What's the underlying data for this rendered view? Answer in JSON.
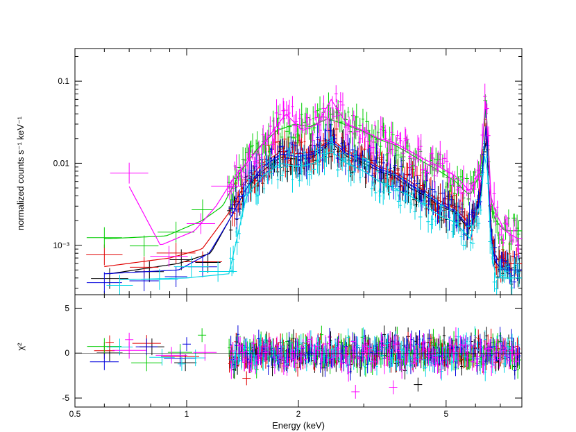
{
  "chart_data": [
    {
      "type": "scatter",
      "panel": "spectrum",
      "ylabel": "normalized counts s⁻¹ keV⁻¹",
      "yscale": "log",
      "xscale": "log",
      "xlim": [
        0.5,
        8.0
      ],
      "ylim": [
        0.00025,
        0.25
      ],
      "yticks": [
        {
          "v": 0.1,
          "label": "0.1"
        },
        {
          "v": 0.01,
          "label": "0.01"
        },
        {
          "v": 0.001,
          "label": "10⁻³"
        }
      ],
      "series": [
        {
          "color": "#000000",
          "x": [
            0.62,
            0.95,
            1.16,
            1.3,
            1.45,
            1.6,
            1.8,
            2.0,
            2.2,
            2.45,
            2.7,
            3.0,
            3.3,
            3.6,
            4.0,
            4.4,
            4.8,
            5.3,
            5.8,
            6.2,
            6.4,
            6.6,
            6.8,
            7.2,
            7.8
          ],
          "y": [
            0.00045,
            0.0006,
            0.0008,
            0.002,
            0.005,
            0.008,
            0.012,
            0.011,
            0.012,
            0.018,
            0.012,
            0.01,
            0.008,
            0.007,
            0.005,
            0.004,
            0.003,
            0.0025,
            0.0015,
            0.004,
            0.03,
            0.0012,
            0.0006,
            0.0005,
            0.0005
          ]
        },
        {
          "color": "#e00000",
          "x": [
            0.6,
            0.9,
            1.1,
            1.3,
            1.45,
            1.6,
            1.8,
            2.0,
            2.2,
            2.45,
            2.7,
            3.0,
            3.3,
            3.6,
            4.0,
            4.4,
            4.8,
            5.3,
            5.8,
            6.2,
            6.4,
            6.6,
            6.8,
            7.2,
            7.8
          ],
          "y": [
            0.00055,
            0.0007,
            0.0009,
            0.0025,
            0.006,
            0.01,
            0.014,
            0.013,
            0.014,
            0.02,
            0.014,
            0.012,
            0.009,
            0.008,
            0.006,
            0.0045,
            0.0035,
            0.0028,
            0.0018,
            0.0045,
            0.035,
            0.0015,
            0.0007,
            0.0006,
            0.0006
          ]
        },
        {
          "color": "#00cc00",
          "x": [
            0.6,
            0.88,
            1.1,
            1.25,
            1.4,
            1.55,
            1.75,
            1.95,
            2.15,
            2.4,
            2.65,
            2.95,
            3.25,
            3.6,
            4.0,
            4.4,
            4.8,
            5.3,
            5.8,
            6.2,
            6.4,
            6.6,
            6.8,
            7.2,
            7.8
          ],
          "y": [
            0.0012,
            0.0013,
            0.002,
            0.003,
            0.008,
            0.015,
            0.025,
            0.03,
            0.028,
            0.035,
            0.03,
            0.025,
            0.02,
            0.017,
            0.013,
            0.01,
            0.008,
            0.006,
            0.004,
            0.008,
            0.06,
            0.003,
            0.002,
            0.0015,
            0.0015
          ]
        },
        {
          "color": "#0000dd",
          "x": [
            0.6,
            0.95,
            1.15,
            1.3,
            1.45,
            1.6,
            1.8,
            2.0,
            2.2,
            2.45,
            2.7,
            3.0,
            3.3,
            3.6,
            4.0,
            4.4,
            4.8,
            5.3,
            5.8,
            6.2,
            6.4,
            6.6,
            6.8,
            7.2,
            7.8
          ],
          "y": [
            0.00045,
            0.0005,
            0.0008,
            0.002,
            0.005,
            0.009,
            0.013,
            0.012,
            0.013,
            0.019,
            0.013,
            0.011,
            0.0085,
            0.0075,
            0.0055,
            0.0042,
            0.0032,
            0.0026,
            0.0016,
            0.0042,
            0.032,
            0.0013,
            0.0006,
            0.0005,
            0.0005
          ]
        },
        {
          "color": "#00d5e5",
          "x": [
            0.66,
            1.0,
            1.3,
            1.45,
            1.6,
            1.8,
            2.0,
            2.2,
            2.45,
            2.7,
            3.0,
            3.3,
            3.6,
            4.0,
            4.4,
            4.8,
            5.3,
            5.8,
            6.2,
            6.4,
            6.6,
            6.8,
            7.2,
            7.8
          ],
          "y": [
            0.00038,
            0.0004,
            0.00045,
            0.004,
            0.007,
            0.01,
            0.009,
            0.01,
            0.014,
            0.01,
            0.008,
            0.006,
            0.005,
            0.004,
            0.003,
            0.0023,
            0.0019,
            0.0012,
            0.0032,
            0.02,
            0.001,
            0.0004,
            0.0004,
            0.0004
          ]
        },
        {
          "color": "#ff00ff",
          "x": [
            0.7,
            0.85,
            1.05,
            1.2,
            1.35,
            1.5,
            1.65,
            1.85,
            2.05,
            2.25,
            2.45,
            2.7,
            3.0,
            3.3,
            3.6,
            4.0,
            4.4,
            4.8,
            5.3,
            5.8,
            6.2,
            6.4,
            6.6,
            6.8,
            7.2,
            7.8
          ],
          "y": [
            0.0052,
            0.001,
            0.0015,
            0.003,
            0.007,
            0.012,
            0.02,
            0.04,
            0.025,
            0.03,
            0.06,
            0.03,
            0.025,
            0.02,
            0.018,
            0.014,
            0.011,
            0.009,
            0.007,
            0.0045,
            0.009,
            0.07,
            0.004,
            0.0025,
            0.0015,
            0.0012
          ]
        }
      ]
    },
    {
      "type": "scatter",
      "panel": "residuals",
      "xlabel": "Energy (keV)",
      "ylabel": "χ²",
      "xscale": "log",
      "xlim": [
        0.5,
        8.0
      ],
      "ylim": [
        -6.0,
        6.5
      ],
      "xticks": [
        {
          "v": 0.5,
          "label": "0.5"
        },
        {
          "v": 1,
          "label": "1"
        },
        {
          "v": 2,
          "label": "2"
        },
        {
          "v": 5,
          "label": "5"
        }
      ],
      "yticks": [
        {
          "v": 5,
          "label": "5"
        },
        {
          "v": 0,
          "label": "0"
        },
        {
          "v": -5,
          "label": "-5"
        }
      ],
      "points": [
        {
          "color": "#e00000",
          "x": 1.45,
          "y": -2.8
        },
        {
          "color": "#e00000",
          "x": 0.62,
          "y": 1.2
        },
        {
          "color": "#ff00ff",
          "x": 0.7,
          "y": 1.5
        },
        {
          "color": "#00d5e5",
          "x": 0.97,
          "y": -1.2
        },
        {
          "color": "#0000dd",
          "x": 1.0,
          "y": 1.0
        },
        {
          "color": "#00cc00",
          "x": 1.1,
          "y": 2.0
        },
        {
          "color": "#ff00ff",
          "x": 2.85,
          "y": -4.3
        },
        {
          "color": "#ff00ff",
          "x": 3.6,
          "y": -3.8
        },
        {
          "color": "#000000",
          "x": 4.2,
          "y": -3.5
        },
        {
          "color": "#ff00ff",
          "x": 6.5,
          "y": 0.5
        }
      ]
    }
  ]
}
